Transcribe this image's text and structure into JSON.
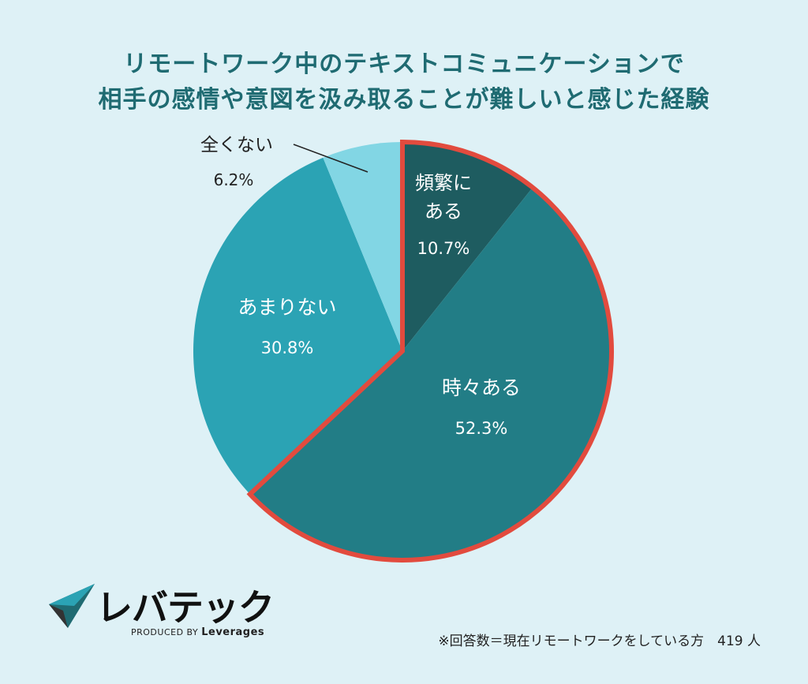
{
  "header": {
    "title_line1": "リモートワーク中のテキストコミュニケーションで",
    "title_line2": "相手の感情や意図を汲み取ることが難しいと感じた経験"
  },
  "colors": {
    "background": "#def1f6",
    "title": "#1f6b72",
    "highlight_border": "#e24b3e"
  },
  "chart_data": {
    "type": "pie",
    "title": "リモートワーク中のテキストコミュニケーションで相手の感情や意図を汲み取ることが難しいと感じた経験",
    "slices": [
      {
        "label": "頻繁にある",
        "value": 10.7,
        "value_label": "10.7%",
        "color": "#1e5c60",
        "highlighted": true
      },
      {
        "label": "時々ある",
        "value": 52.3,
        "value_label": "52.3%",
        "color": "#227d86",
        "highlighted": true
      },
      {
        "label": "あまりない",
        "value": 30.8,
        "value_label": "30.8%",
        "color": "#2ba3b4",
        "highlighted": false
      },
      {
        "label": "全くない",
        "value": 6.2,
        "value_label": "6.2%",
        "color": "#82d6e4",
        "highlighted": false
      }
    ],
    "start_angle": "12 o'clock, clockwise"
  },
  "labels": {
    "s0_line1": "頻繁に",
    "s0_line2": "ある",
    "s0_value": "10.7%",
    "s1_line1": "時々ある",
    "s1_value": "52.3%",
    "s2_line1": "あまりない",
    "s2_value": "30.8%",
    "s3_line1": "全くない",
    "s3_value": "6.2%"
  },
  "logo": {
    "text": "レバテック",
    "sub_prefix": "PRODUCED BY ",
    "sub_brand": "Leverages"
  },
  "footnote": "※回答数＝現在リモートワークをしている方　419 人"
}
